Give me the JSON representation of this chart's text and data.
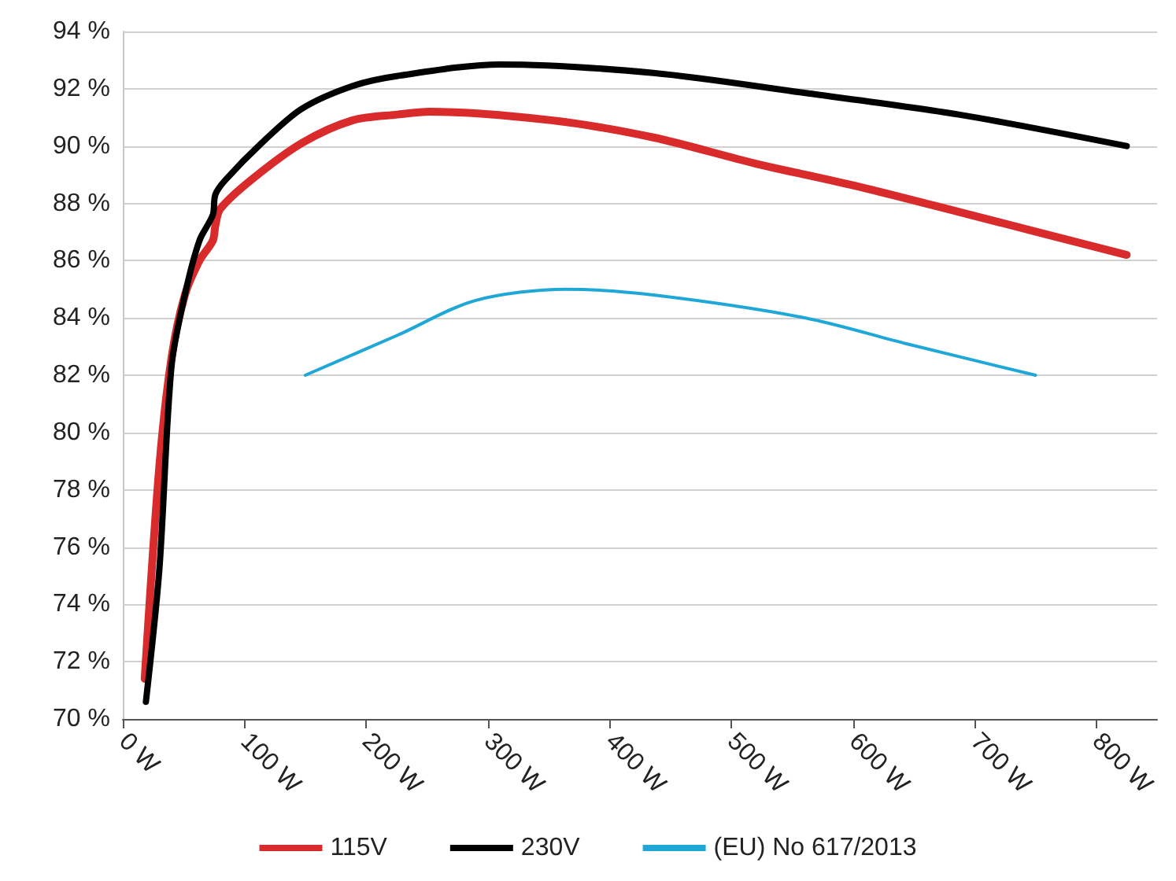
{
  "chart_data": {
    "type": "line",
    "xlim": [
      0,
      850
    ],
    "xticks": [
      {
        "value": 0,
        "label": "0 W"
      },
      {
        "value": 100,
        "label": "100 W"
      },
      {
        "value": 200,
        "label": "200 W"
      },
      {
        "value": 300,
        "label": "300 W"
      },
      {
        "value": 400,
        "label": "400 W"
      },
      {
        "value": 500,
        "label": "500 W"
      },
      {
        "value": 600,
        "label": "600 W"
      },
      {
        "value": 700,
        "label": "700 W"
      },
      {
        "value": 800,
        "label": "800 W"
      }
    ],
    "ylim": [
      70,
      94
    ],
    "yticks": [
      {
        "value": 70,
        "label": "70 %"
      },
      {
        "value": 72,
        "label": "72 %"
      },
      {
        "value": 74,
        "label": "74 %"
      },
      {
        "value": 76,
        "label": "76 %"
      },
      {
        "value": 78,
        "label": "78 %"
      },
      {
        "value": 80,
        "label": "80 %"
      },
      {
        "value": 82,
        "label": "82 %"
      },
      {
        "value": 84,
        "label": "84 %"
      },
      {
        "value": 86,
        "label": "86 %"
      },
      {
        "value": 88,
        "label": "88 %"
      },
      {
        "value": 90,
        "label": "90 %"
      },
      {
        "value": 92,
        "label": "92 %"
      },
      {
        "value": 94,
        "label": "94 %"
      }
    ],
    "grid": "y",
    "legend": "bottom",
    "marker": "none",
    "line_style": "solid",
    "series": [
      {
        "name": "115V",
        "color": "#d92b2b",
        "x": [
          18,
          30,
          40,
          51,
          63,
          74,
          76,
          80,
          105,
          147,
          189,
          226,
          252,
          352,
          436,
          519,
          603,
          687,
          825
        ],
        "values": [
          71.4,
          78.8,
          82.6,
          84.8,
          86.0,
          86.7,
          87.2,
          87.8,
          88.8,
          90.1,
          90.9,
          91.1,
          91.2,
          90.9,
          90.3,
          89.4,
          88.6,
          87.7,
          86.2
        ]
      },
      {
        "name": "230V",
        "color": "#000000",
        "x": [
          19,
          30,
          40,
          51,
          63,
          74,
          76,
          84,
          114,
          147,
          189,
          226,
          310,
          436,
          561,
          687,
          825
        ],
        "values": [
          70.6,
          75.2,
          82.3,
          84.8,
          86.7,
          87.6,
          88.3,
          88.8,
          90.1,
          91.3,
          92.1,
          92.45,
          92.85,
          92.55,
          91.85,
          91.1,
          90.0
        ]
      },
      {
        "name": "(EU) No 617/2013",
        "color": "#1fa7d8",
        "x": [
          150,
          226,
          289,
          364,
          436,
          561,
          644,
          750
        ],
        "values": [
          82.0,
          83.4,
          84.6,
          85.0,
          84.8,
          84.0,
          83.1,
          82.0
        ]
      }
    ]
  }
}
